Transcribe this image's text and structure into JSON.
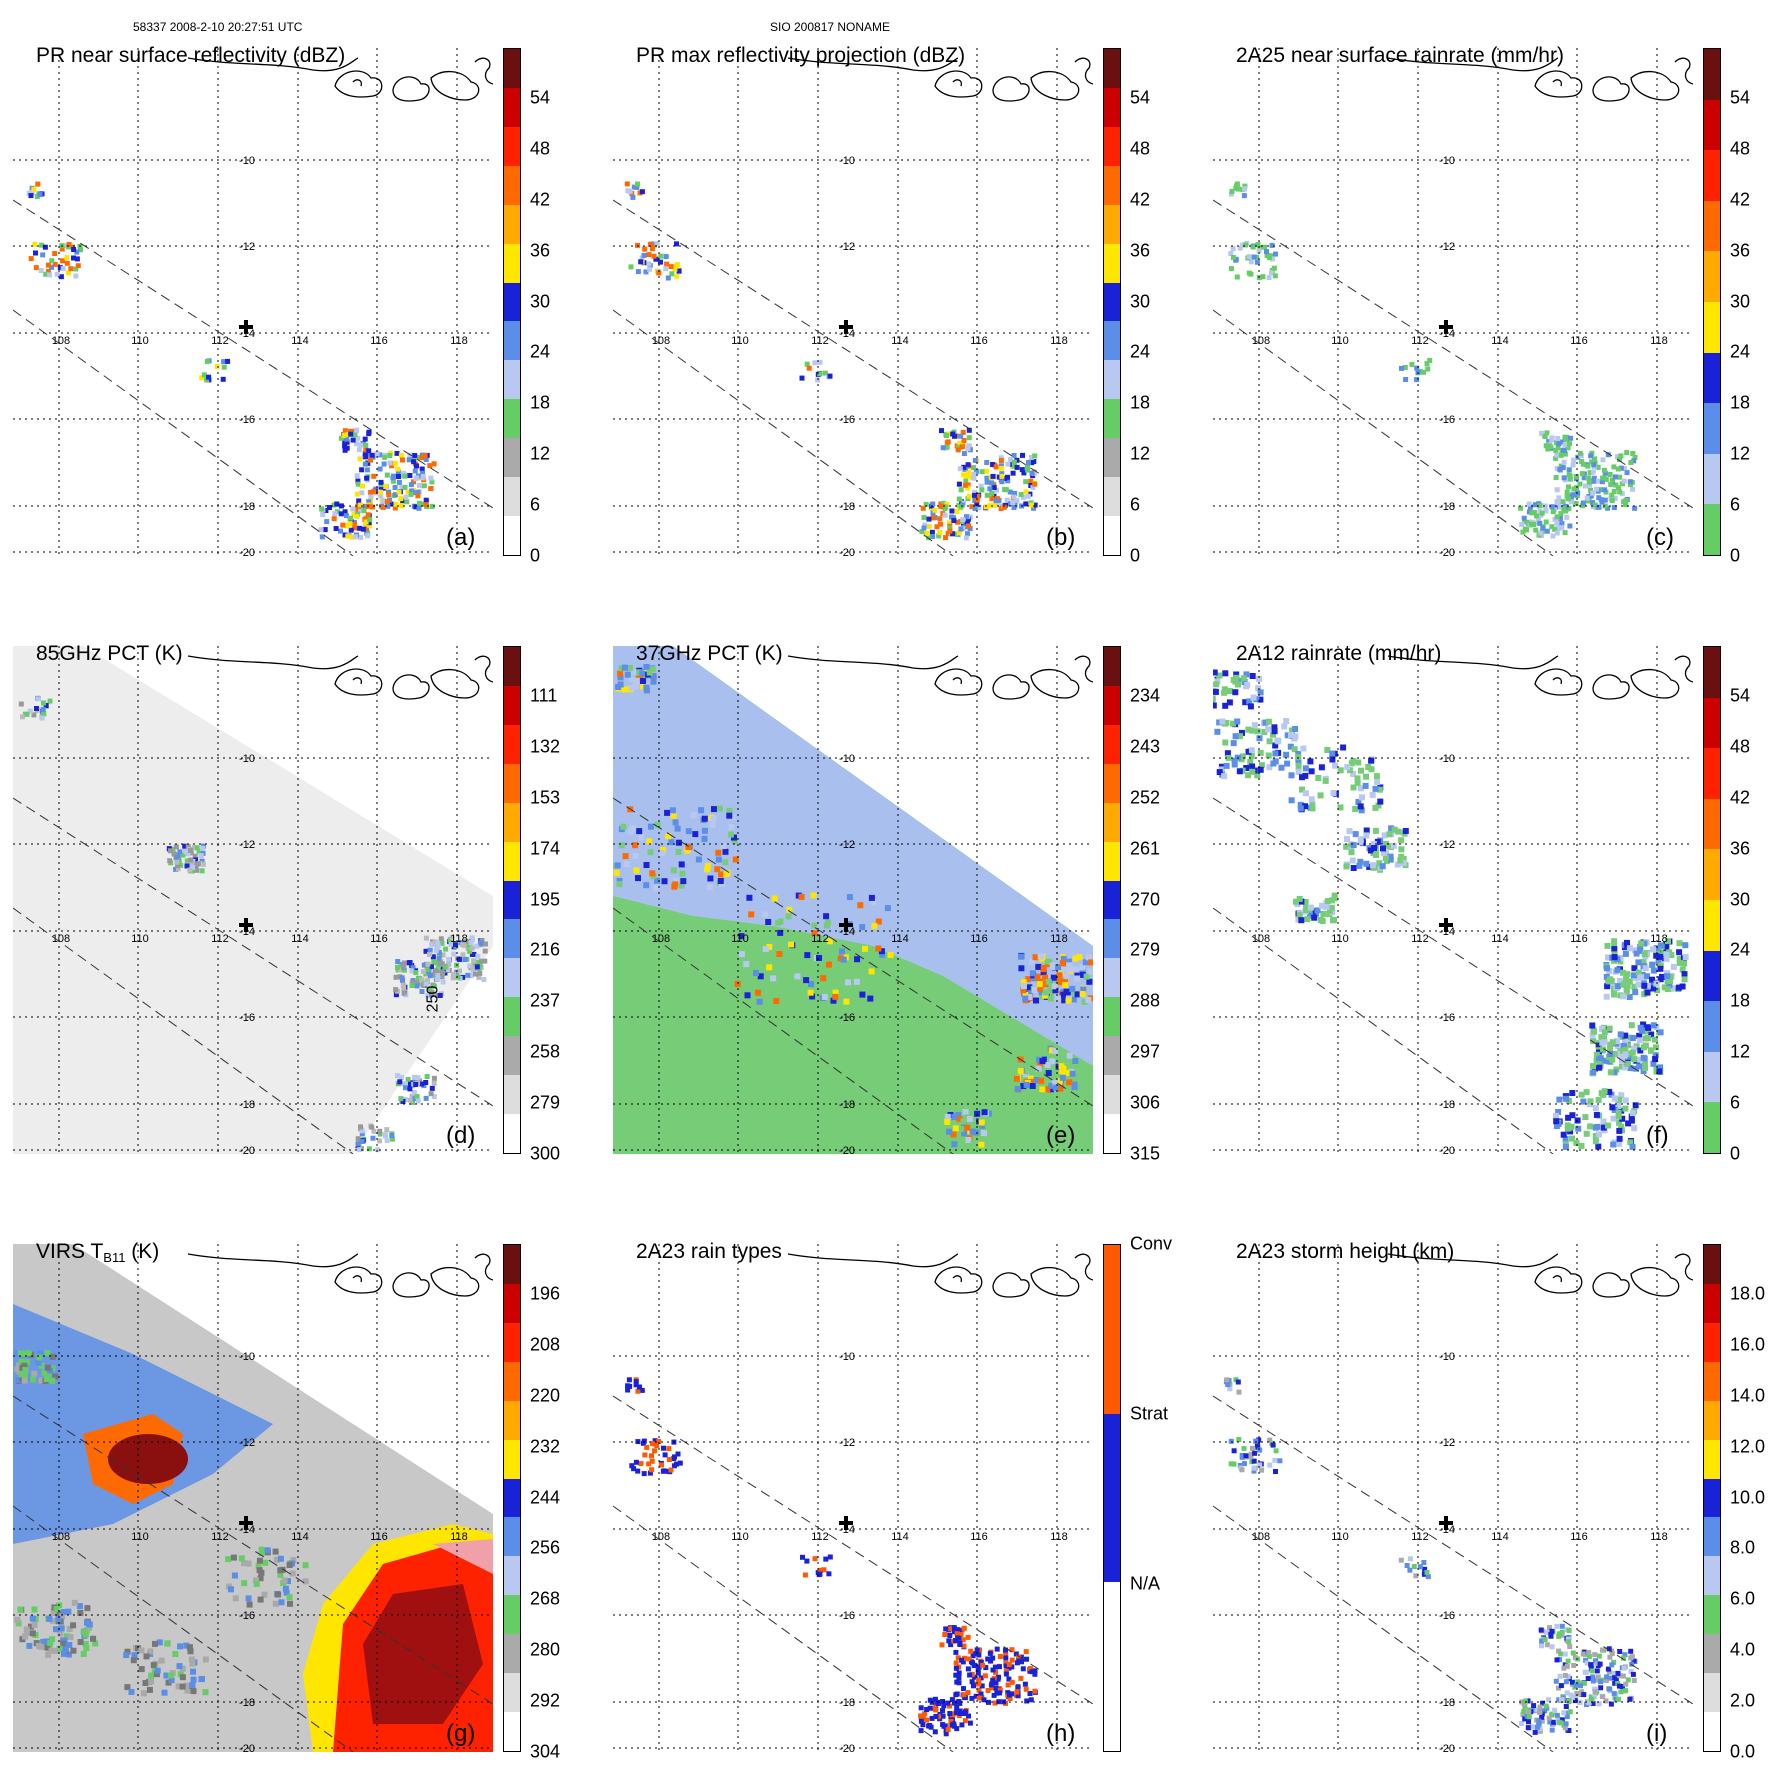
{
  "header": {
    "left_text": "58337 2008-2-10 20:27:51 UTC",
    "center_text": "SIO 200817 NONAME"
  },
  "lat_labels": [
    "-10",
    "-12",
    "-14",
    "-16",
    "-18",
    "-20"
  ],
  "lon_labels": [
    "108",
    "110",
    "112",
    "114",
    "116",
    "118"
  ],
  "panels": [
    {
      "id": "a",
      "title": "PR near surface reflectivity (dBZ)",
      "label": "(a)",
      "scheme": "dbz",
      "ticks": [
        "54",
        "48",
        "42",
        "36",
        "30",
        "24",
        "18",
        "12",
        "6",
        "0"
      ]
    },
    {
      "id": "b",
      "title": "PR max reflectivity projection (dBZ)",
      "label": "(b)",
      "scheme": "dbz",
      "ticks": [
        "54",
        "48",
        "42",
        "36",
        "30",
        "24",
        "18",
        "12",
        "6",
        "0"
      ]
    },
    {
      "id": "c",
      "title": "2A25 near surface rainrate (mm/hr)",
      "label": "(c)",
      "scheme": "rain",
      "ticks": [
        "54",
        "48",
        "42",
        "36",
        "30",
        "24",
        "18",
        "12",
        "6",
        "0"
      ]
    },
    {
      "id": "d",
      "title": "85GHz PCT (K)",
      "label": "(d)",
      "scheme": "pct",
      "ticks": [
        "111",
        "132",
        "153",
        "174",
        "195",
        "216",
        "237",
        "258",
        "279",
        "300"
      ],
      "annotation": "250"
    },
    {
      "id": "e",
      "title": "37GHz PCT (K)",
      "label": "(e)",
      "scheme": "pct",
      "ticks": [
        "234",
        "243",
        "252",
        "261",
        "270",
        "279",
        "288",
        "297",
        "306",
        "315"
      ]
    },
    {
      "id": "f",
      "title": "2A12 rainrate (mm/hr)",
      "label": "(f)",
      "scheme": "rain2",
      "ticks": [
        "54",
        "48",
        "42",
        "36",
        "30",
        "24",
        "18",
        "12",
        "6",
        "0"
      ]
    },
    {
      "id": "g",
      "title_main": "VIRS T",
      "title_sub": "B11",
      "title_tail": " (K)",
      "label": "(g)",
      "scheme": "virs",
      "ticks": [
        "196",
        "208",
        "220",
        "232",
        "244",
        "256",
        "268",
        "280",
        "292",
        "304"
      ]
    },
    {
      "id": "h",
      "title": "2A23 rain types",
      "label": "(h)",
      "scheme": "types",
      "ticks": [
        "Conv",
        "Strat",
        "N/A"
      ]
    },
    {
      "id": "i",
      "title": "2A23 storm height (km)",
      "label": "(i)",
      "scheme": "height",
      "ticks": [
        "18.0",
        "16.0",
        "14.0",
        "12.0",
        "10.0",
        "8.0",
        "6.0",
        "4.0",
        "2.0",
        "0.0"
      ]
    }
  ],
  "colors": {
    "dbz": [
      "#ffffff",
      "#dddddd",
      "#aaaaaa",
      "#66cc66",
      "#b8c8f0",
      "#5a8ee8",
      "#1a22d8",
      "#ffe600",
      "#ffaa00",
      "#ff6a00",
      "#ff2200",
      "#cc0000",
      "#6a1010"
    ],
    "rain": [
      "#66cc66",
      "#b8c8f0",
      "#5a8ee8",
      "#1a22d8",
      "#ffe600",
      "#ffaa00",
      "#ff6a00",
      "#ff2200",
      "#cc0000",
      "#6a1010"
    ],
    "pct": [
      "#ffffff",
      "#dddddd",
      "#aaaaaa",
      "#66cc66",
      "#b8c8f0",
      "#5a8ee8",
      "#1a22d8",
      "#ffe600",
      "#ffaa00",
      "#ff6a00",
      "#ff2200",
      "#cc0000",
      "#6a1010"
    ],
    "types": [
      "#ffffff",
      "#1a22d8",
      "#ff5a00"
    ],
    "bg_gray": "#d6d6d6",
    "bg_blue": "#a9c0ee",
    "bg_green": "#77cc77"
  }
}
